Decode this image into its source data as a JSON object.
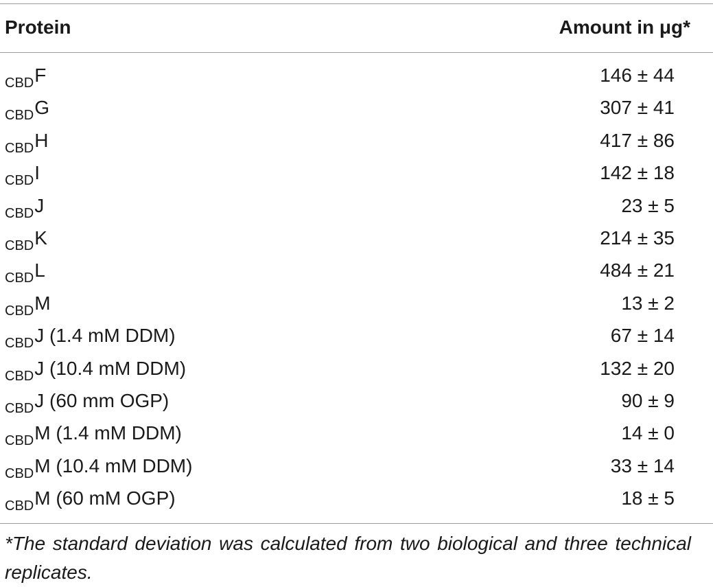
{
  "table": {
    "header": {
      "protein": "Protein",
      "amount": "Amount in μg*"
    },
    "rows": [
      {
        "sub": "CBD",
        "name": "F",
        "amount": "146 ± 44"
      },
      {
        "sub": "CBD",
        "name": "G",
        "amount": "307 ± 41"
      },
      {
        "sub": "CBD",
        "name": "H",
        "amount": "417 ± 86"
      },
      {
        "sub": "CBD",
        "name": "I",
        "amount": "142 ± 18"
      },
      {
        "sub": "CBD",
        "name": "J",
        "amount": "23 ± 5"
      },
      {
        "sub": "CBD",
        "name": "K",
        "amount": "214 ± 35"
      },
      {
        "sub": "CBD",
        "name": "L",
        "amount": "484 ± 21"
      },
      {
        "sub": "CBD",
        "name": "M",
        "amount": "13 ± 2"
      },
      {
        "sub": "CBD",
        "name": "J (1.4 mM DDM)",
        "amount": "67 ± 14"
      },
      {
        "sub": "CBD",
        "name": "J (10.4 mM DDM)",
        "amount": "132 ± 20"
      },
      {
        "sub": "CBD",
        "name": "J (60 mm OGP)",
        "amount": "90 ± 9"
      },
      {
        "sub": "CBD",
        "name": "M (1.4 mM DDM)",
        "amount": "14 ± 0"
      },
      {
        "sub": "CBD",
        "name": "M (10.4 mM DDM)",
        "amount": "33 ± 14"
      },
      {
        "sub": "CBD",
        "name": "M (60 mM OGP)",
        "amount": "18 ± 5"
      }
    ],
    "footnote": "*The standard deviation was calculated from two biological and three technical replicates."
  }
}
